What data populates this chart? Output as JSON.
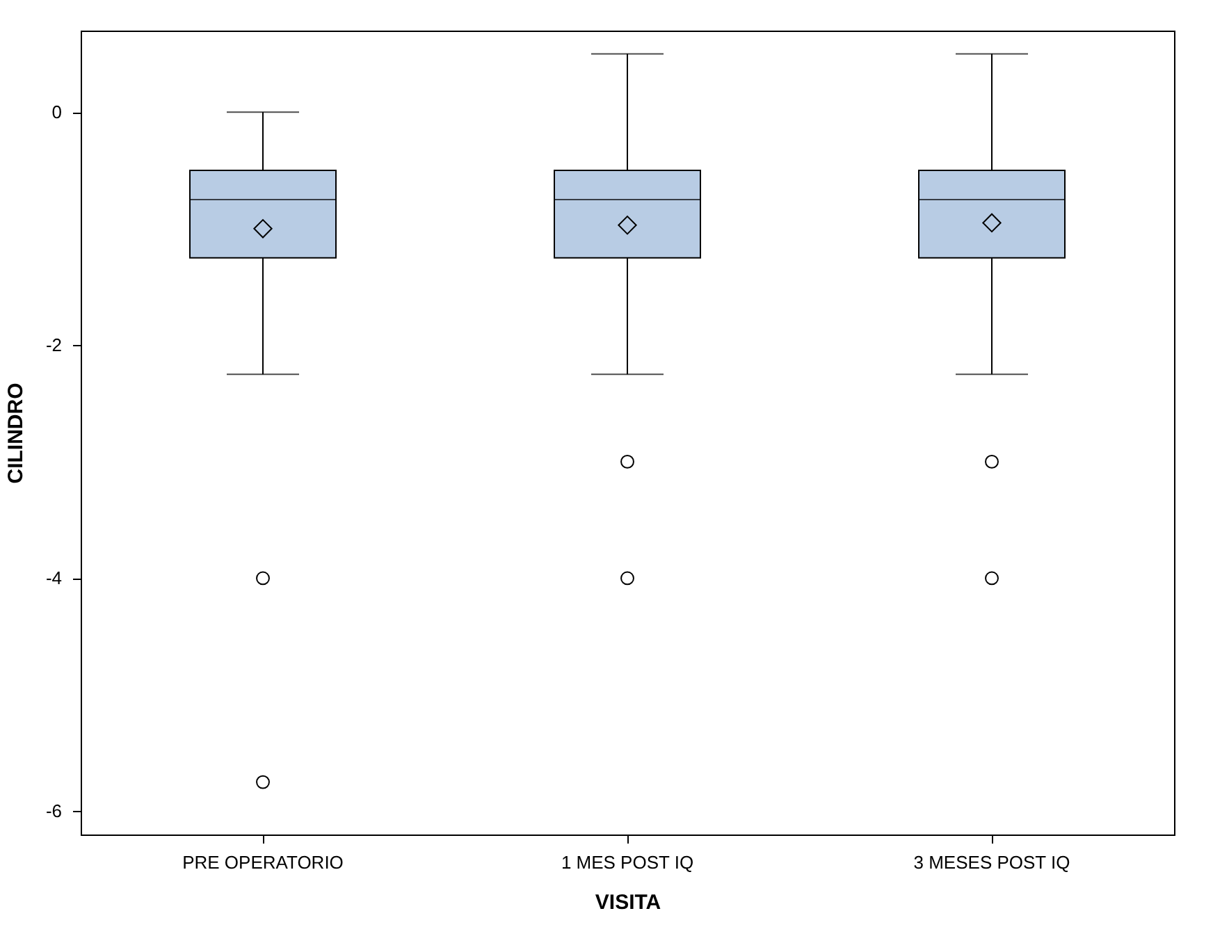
{
  "chart_data": {
    "type": "box",
    "xlabel": "VISITA",
    "ylabel": "CILINDRO",
    "categories": [
      "PRE OPERATORIO",
      "1 MES POST IQ",
      "3 MESES POST IQ"
    ],
    "color": "#b8cce4",
    "boxes": [
      {
        "low": -2.25,
        "q1": -1.25,
        "median": -0.75,
        "q3": -0.5,
        "high": 0,
        "mean": -1.0,
        "outliers": [
          -4,
          -5.75
        ]
      },
      {
        "low": -2.25,
        "q1": -1.25,
        "median": -0.75,
        "q3": -0.5,
        "high": 0.5,
        "mean": -0.97,
        "outliers": [
          -3,
          -4
        ]
      },
      {
        "low": -2.25,
        "q1": -1.25,
        "median": -0.75,
        "q3": -0.5,
        "high": 0.5,
        "mean": -0.95,
        "outliers": [
          -3,
          -4
        ]
      }
    ],
    "ylim": [
      -6.2,
      0.7
    ],
    "yticks": [
      0,
      -2,
      -4,
      -6
    ]
  }
}
